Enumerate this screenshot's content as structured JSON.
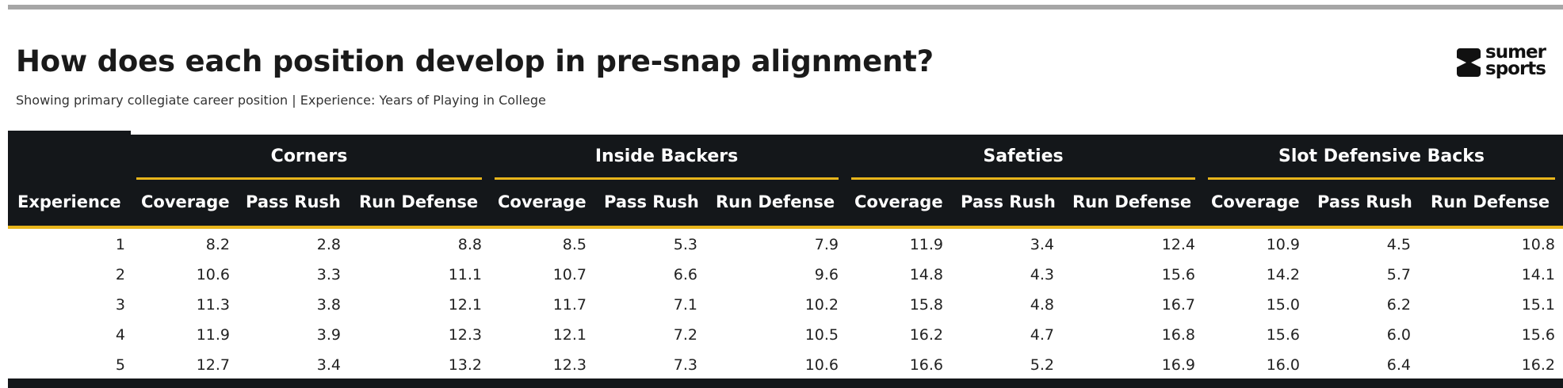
{
  "header": {
    "title": "How does each position develop in pre-snap alignment?",
    "subtitle": "Showing primary collegiate career position | Experience: Years of Playing in College"
  },
  "brand": {
    "line1": "sumer",
    "line2": "sports"
  },
  "table": {
    "row_header": "Experience",
    "groups": [
      {
        "label": "Corners",
        "columns": [
          "Coverage",
          "Pass Rush",
          "Run Defense"
        ]
      },
      {
        "label": "Inside Backers",
        "columns": [
          "Coverage",
          "Pass Rush",
          "Run Defense"
        ]
      },
      {
        "label": "Safeties",
        "columns": [
          "Coverage",
          "Pass Rush",
          "Run Defense"
        ]
      },
      {
        "label": "Slot Defensive Backs",
        "columns": [
          "Coverage",
          "Pass Rush",
          "Run Defense"
        ]
      }
    ],
    "rows": [
      {
        "experience": "1",
        "values": [
          "8.2",
          "2.8",
          "8.8",
          "8.5",
          "5.3",
          "7.9",
          "11.9",
          "3.4",
          "12.4",
          "10.9",
          "4.5",
          "10.8"
        ]
      },
      {
        "experience": "2",
        "values": [
          "10.6",
          "3.3",
          "11.1",
          "10.7",
          "6.6",
          "9.6",
          "14.8",
          "4.3",
          "15.6",
          "14.2",
          "5.7",
          "14.1"
        ]
      },
      {
        "experience": "3",
        "values": [
          "11.3",
          "3.8",
          "12.1",
          "11.7",
          "7.1",
          "10.2",
          "15.8",
          "4.8",
          "16.7",
          "15.0",
          "6.2",
          "15.1"
        ]
      },
      {
        "experience": "4",
        "values": [
          "11.9",
          "3.9",
          "12.3",
          "12.1",
          "7.2",
          "10.5",
          "16.2",
          "4.7",
          "16.8",
          "15.6",
          "6.0",
          "15.6"
        ]
      },
      {
        "experience": "5",
        "values": [
          "12.7",
          "3.4",
          "13.2",
          "12.3",
          "7.3",
          "10.6",
          "16.6",
          "5.2",
          "16.9",
          "16.0",
          "6.4",
          "16.2"
        ]
      }
    ]
  },
  "colors": {
    "header_bg": "#14171a",
    "accent": "#e8b51b",
    "rule": "#a6a6a6"
  },
  "chart_data": {
    "type": "table",
    "title": "How does each position develop in pre-snap alignment?",
    "subtitle": "Showing primary collegiate career position | Experience: Years of Playing in College",
    "row_label": "Experience",
    "categories": [
      "1",
      "2",
      "3",
      "4",
      "5"
    ],
    "series": [
      {
        "name": "Corners Coverage",
        "values": [
          8.2,
          10.6,
          11.3,
          11.9,
          12.7
        ]
      },
      {
        "name": "Corners Pass Rush",
        "values": [
          2.8,
          3.3,
          3.8,
          3.9,
          3.4
        ]
      },
      {
        "name": "Corners Run Defense",
        "values": [
          8.8,
          11.1,
          12.1,
          12.3,
          13.2
        ]
      },
      {
        "name": "Inside Backers Coverage",
        "values": [
          8.5,
          10.7,
          11.7,
          12.1,
          12.3
        ]
      },
      {
        "name": "Inside Backers Pass Rush",
        "values": [
          5.3,
          6.6,
          7.1,
          7.2,
          7.3
        ]
      },
      {
        "name": "Inside Backers Run Defense",
        "values": [
          7.9,
          9.6,
          10.2,
          10.5,
          10.6
        ]
      },
      {
        "name": "Safeties Coverage",
        "values": [
          11.9,
          14.8,
          15.8,
          16.2,
          16.6
        ]
      },
      {
        "name": "Safeties Pass Rush",
        "values": [
          3.4,
          4.3,
          4.8,
          4.7,
          5.2
        ]
      },
      {
        "name": "Safeties Run Defense",
        "values": [
          12.4,
          15.6,
          16.7,
          16.8,
          16.9
        ]
      },
      {
        "name": "Slot Defensive Backs Coverage",
        "values": [
          10.9,
          14.2,
          15.0,
          15.6,
          16.0
        ]
      },
      {
        "name": "Slot Defensive Backs Pass Rush",
        "values": [
          4.5,
          5.7,
          6.2,
          6.0,
          6.4
        ]
      },
      {
        "name": "Slot Defensive Backs Run Defense",
        "values": [
          10.8,
          14.1,
          15.1,
          15.6,
          16.2
        ]
      }
    ]
  }
}
